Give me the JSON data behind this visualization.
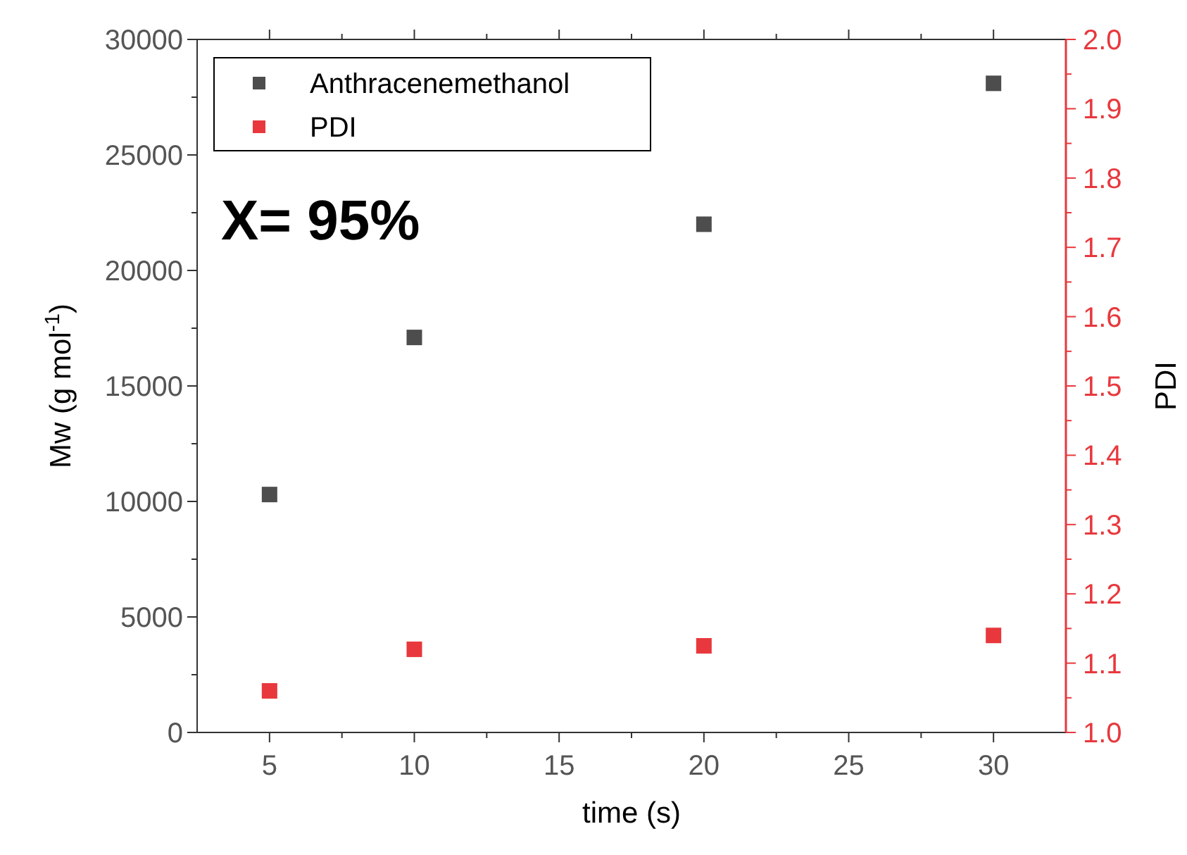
{
  "chart_data": {
    "type": "scatter",
    "xlabel": "time (s)",
    "ylabel": "Mw (g mol$^{-1}$)",
    "y2label": "PDI",
    "x": [
      5,
      10,
      20,
      30
    ],
    "xlim": [
      2.5,
      32.5
    ],
    "xticks": [
      5,
      10,
      15,
      20,
      25,
      30
    ],
    "ylim": [
      0,
      30000
    ],
    "yticks": [
      0,
      5000,
      10000,
      15000,
      20000,
      25000,
      30000
    ],
    "y2lim": [
      1,
      2
    ],
    "y2ticks": [
      {
        "value": 1,
        "label": "1.0"
      },
      {
        "value": 1.1,
        "label": "1.1"
      },
      {
        "value": 1.2,
        "label": "1.2"
      },
      {
        "value": 1.3,
        "label": "1.3"
      },
      {
        "value": 1.4,
        "label": "1.4"
      },
      {
        "value": 1.5,
        "label": "1.5"
      },
      {
        "value": 1.6,
        "label": "1.6"
      },
      {
        "value": 1.7,
        "label": "1.7"
      },
      {
        "value": 1.8,
        "label": "1.8"
      },
      {
        "value": 1.9,
        "label": "1.9"
      },
      {
        "value": 2,
        "label": "2.0"
      }
    ],
    "series": [
      {
        "name": "Anthracenemethanol",
        "color": "#4d4d4d",
        "values": [
          10300,
          17100,
          22000,
          28100
        ]
      },
      {
        "name": "PDI",
        "color": "#e8383d",
        "axis": "y2",
        "values": [
          1.06,
          1.12,
          1.125,
          1.14
        ]
      }
    ],
    "marker": "square",
    "legend": "top left",
    "annotations": [
      "X= 95%"
    ]
  }
}
